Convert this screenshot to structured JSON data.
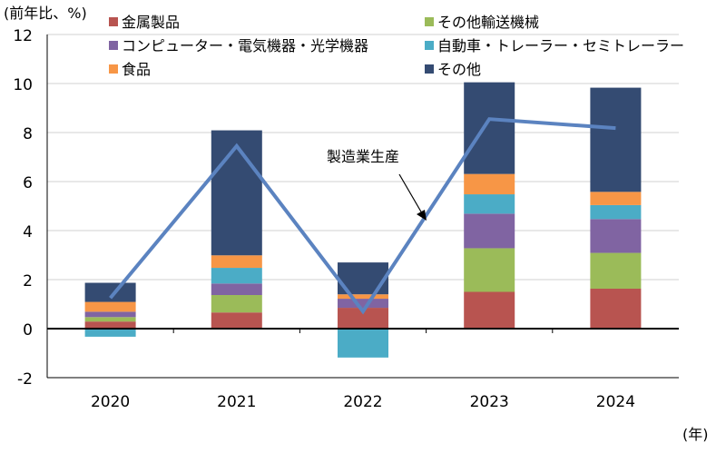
{
  "chart_data": {
    "type": "bar",
    "stacked": true,
    "ylabel": "(前年比、%)",
    "xlabel": "(年)",
    "ylim": [
      -2,
      12
    ],
    "yticks": [
      -2,
      0,
      2,
      4,
      6,
      8,
      10,
      12
    ],
    "grid": true,
    "legend_placement": "top",
    "categories": [
      "2020",
      "2021",
      "2022",
      "2023",
      "2024"
    ],
    "series": [
      {
        "name": "金属製品",
        "color": "#b85450",
        "values": [
          0.29,
          0.66,
          0.85,
          1.5,
          1.63
        ]
      },
      {
        "name": "その他輸送機械",
        "color": "#9bbb59",
        "values": [
          0.18,
          0.71,
          0.0,
          1.78,
          1.46
        ]
      },
      {
        "name": "コンピューター・電気機器・光学機器",
        "color": "#8064a2",
        "values": [
          0.22,
          0.47,
          0.37,
          1.41,
          1.38
        ]
      },
      {
        "name": "自動車・トレーラー・セミトレーラー",
        "color": "#4bacc6",
        "values": [
          -0.33,
          0.64,
          -1.18,
          0.79,
          0.57
        ]
      },
      {
        "name": "食品",
        "color": "#f79646",
        "values": [
          0.4,
          0.51,
          0.18,
          0.83,
          0.54
        ]
      },
      {
        "name": "その他",
        "color": "#344b72",
        "values": [
          0.78,
          5.1,
          1.3,
          3.74,
          4.25
        ]
      }
    ],
    "line": {
      "name": "製造業生産",
      "color": "#5b83c0",
      "values": [
        1.25,
        7.45,
        0.7,
        8.55,
        8.18
      ]
    },
    "annotation": "製造業生産"
  }
}
